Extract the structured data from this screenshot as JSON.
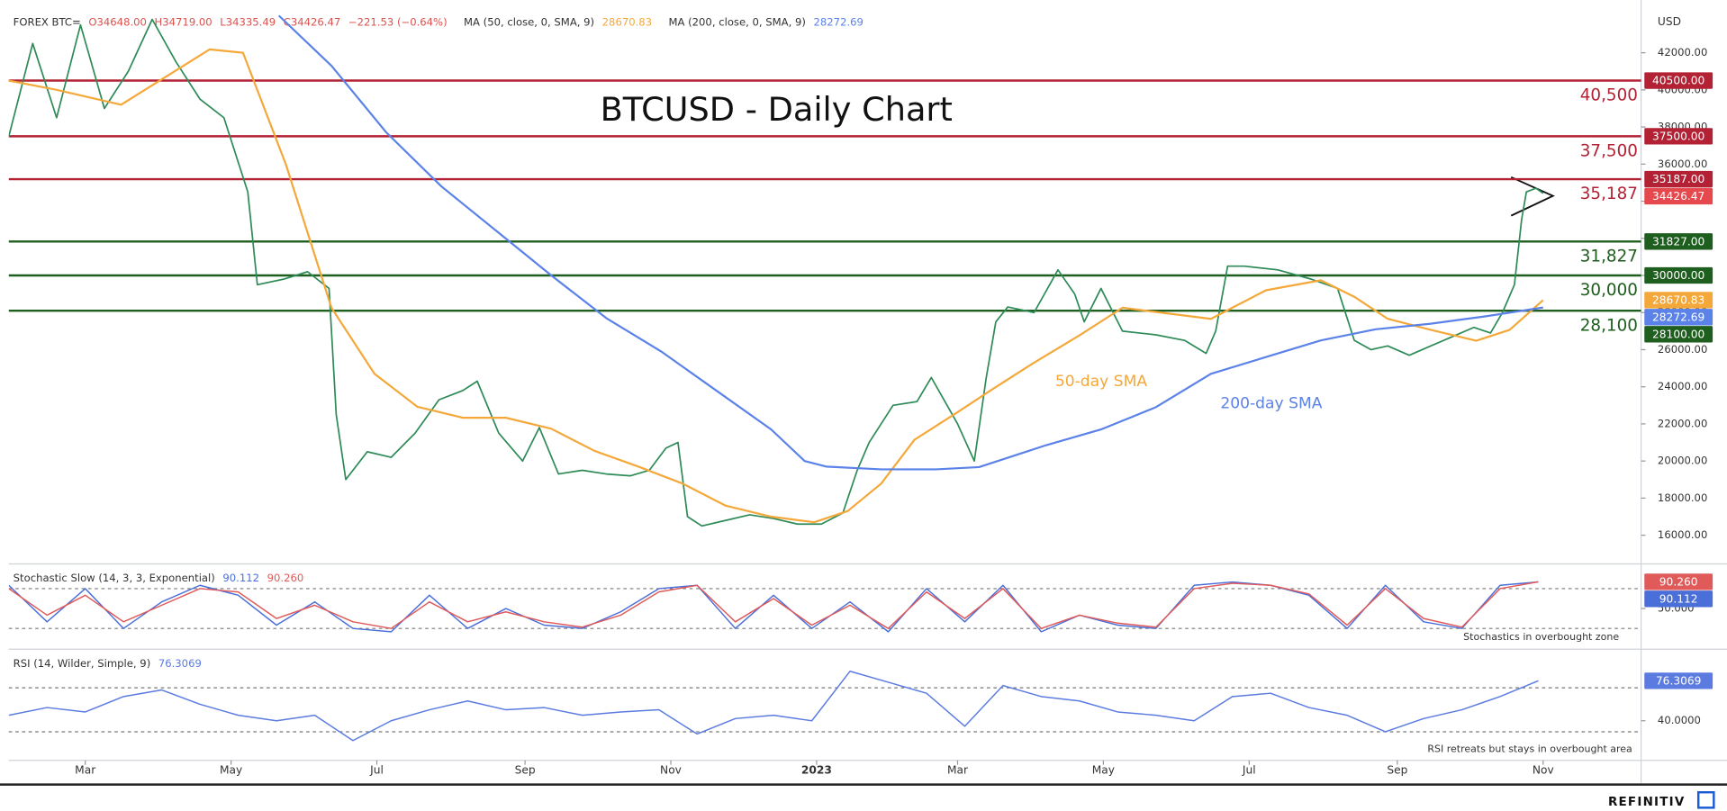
{
  "chart_data": [
    {
      "type": "line",
      "title": "BTCUSD - Daily Chart",
      "y_unit": "USD",
      "info": [
        "O34648.00",
        "H34719.00",
        "L34335.49",
        "C34426.47",
        "−221.53 (−0.64%)"
      ],
      "xlim": [
        0,
        683
      ],
      "ylim": [
        14600,
        44250
      ],
      "xticks": [
        {
          "value": 32,
          "label": "Mar"
        },
        {
          "value": 93,
          "label": "May"
        },
        {
          "value": 154,
          "label": "Jul"
        },
        {
          "value": 216,
          "label": "Sep"
        },
        {
          "value": 277,
          "label": "Nov"
        },
        {
          "value": 338,
          "label": "2023"
        },
        {
          "value": 397,
          "label": "Mar"
        },
        {
          "value": 458,
          "label": "May"
        },
        {
          "value": 519,
          "label": "Jul"
        },
        {
          "value": 581,
          "label": "Sep"
        },
        {
          "value": 642,
          "label": "Nov"
        }
      ],
      "yticks": [
        {
          "value": 16000,
          "label": "16000.00"
        },
        {
          "value": 18000,
          "label": "18000.00"
        },
        {
          "value": 20000,
          "label": "20000.00"
        },
        {
          "value": 22000,
          "label": "22000.00"
        },
        {
          "value": 24000,
          "label": "24000.00"
        },
        {
          "value": 26000,
          "label": "26000.00"
        },
        {
          "value": 28000,
          "label": "28000.00"
        },
        {
          "value": 30000,
          "label": "30000.00"
        },
        {
          "value": 32000,
          "label": "32000.00"
        },
        {
          "value": 34000,
          "label": "34000.00"
        },
        {
          "value": 36000,
          "label": "36000.00"
        },
        {
          "value": 38000,
          "label": "38000.00"
        },
        {
          "value": 40000,
          "label": "40000.00"
        },
        {
          "value": 42000,
          "label": "42000.00"
        }
      ],
      "series": [
        {
          "name": "FOREX BTC=",
          "color": "#2e8b57",
          "badge_color": "#e5494d",
          "x": [
            0,
            10,
            20,
            30,
            40,
            50,
            60,
            70,
            80,
            90,
            100,
            104,
            115,
            125,
            134,
            137,
            141,
            150,
            160,
            170,
            180,
            190,
            196,
            205,
            215,
            222,
            230,
            240,
            250,
            260,
            268,
            275,
            280,
            284,
            290,
            300,
            310,
            320,
            330,
            340,
            349,
            355,
            360,
            370,
            380,
            386,
            397,
            404,
            409,
            413,
            418,
            429,
            439,
            446,
            450,
            457,
            466,
            480,
            492,
            501,
            505,
            510,
            517,
            531,
            545,
            556,
            563,
            570,
            577,
            586,
            595,
            604,
            613,
            620,
            625,
            630,
            633,
            635,
            639,
            642
          ],
          "values": [
            37500,
            42500,
            38500,
            43500,
            39000,
            41000,
            43800,
            41500,
            39500,
            38500,
            34500,
            29500,
            29800,
            30200,
            29300,
            22500,
            19000,
            20500,
            20200,
            21500,
            23300,
            23800,
            24300,
            21500,
            20000,
            21800,
            19300,
            19500,
            19300,
            19200,
            19500,
            20700,
            21000,
            17000,
            16500,
            16800,
            17100,
            16900,
            16600,
            16600,
            17200,
            19500,
            21000,
            23000,
            23200,
            24500,
            22000,
            20000,
            24500,
            27500,
            28300,
            28000,
            30300,
            29000,
            27500,
            29300,
            27000,
            26800,
            26500,
            25800,
            27000,
            30500,
            30500,
            30300,
            29800,
            29300,
            26500,
            26000,
            26200,
            25700,
            26200,
            26700,
            27200,
            26900,
            28000,
            29500,
            33000,
            34500,
            34700,
            34426.47
          ]
        },
        {
          "name": "MA (50, close, 0, SMA, 9)",
          "color": "#f5a83a",
          "note": "50-day SMA",
          "x": [
            0,
            20,
            47,
            84,
            98,
            116,
            135,
            153,
            171,
            190,
            208,
            227,
            245,
            264,
            282,
            300,
            319,
            337,
            351,
            365,
            379,
            397,
            411,
            429,
            448,
            466,
            485,
            503,
            526,
            549,
            563,
            577,
            595,
            614,
            628,
            642
          ],
          "values": [
            40500,
            40000,
            39200,
            42180,
            42000,
            35960,
            28260,
            24700,
            22920,
            22330,
            22330,
            21740,
            20550,
            19670,
            18780,
            17590,
            17000,
            16700,
            17300,
            18780,
            21150,
            22630,
            23820,
            25300,
            26770,
            28260,
            27950,
            27660,
            29200,
            29740,
            28850,
            27660,
            27070,
            26480,
            27070,
            28670.83
          ]
        },
        {
          "name": "MA (200, close, 0, SMA, 9)",
          "color": "#5b82e8",
          "note": "200-day SMA",
          "x": [
            113,
            135,
            158,
            181,
            204,
            227,
            250,
            273,
            296,
            319,
            333,
            342,
            365,
            388,
            406,
            434,
            457,
            480,
            503,
            526,
            549,
            572,
            595,
            618,
            642
          ],
          "values": [
            44000,
            41300,
            37700,
            34800,
            32400,
            30000,
            27700,
            25900,
            23800,
            21700,
            20000,
            19700,
            19550,
            19550,
            19670,
            20850,
            21700,
            22900,
            24700,
            25600,
            26500,
            27100,
            27400,
            27800,
            28272.69
          ]
        }
      ],
      "levels": [
        {
          "value": 40500,
          "label": "40,500",
          "badge": "40500.00",
          "color": "#b22234"
        },
        {
          "value": 37500,
          "label": "37,500",
          "badge": "37500.00",
          "color": "#b22234"
        },
        {
          "value": 35187,
          "label": "35,187",
          "badge": "35187.00",
          "color": "#b22234"
        },
        {
          "value": 31827,
          "label": "31,827",
          "badge": "31827.00",
          "color": "#1e5e1e"
        },
        {
          "value": 30000,
          "label": "30,000",
          "badge": "30000.00",
          "color": "#1e5e1e"
        },
        {
          "value": 28100,
          "label": "28,100",
          "badge": "28100.00",
          "color": "#1e5e1e"
        }
      ]
    },
    {
      "type": "line",
      "title": "Stochastic Slow (14, 3, 3, Exponential)",
      "note": "Stochastics in overbought zone",
      "xlim": [
        0,
        683
      ],
      "ylim": [
        -8,
        113
      ],
      "yticks": [
        {
          "value": 50,
          "label": "50.000"
        }
      ],
      "levels": [
        80,
        20
      ],
      "series": [
        {
          "name": "%K",
          "color": "#4a6fd9",
          "x": [
            0,
            16,
            32,
            48,
            64,
            80,
            96,
            112,
            128,
            144,
            160,
            176,
            192,
            208,
            224,
            240,
            256,
            272,
            288,
            304,
            320,
            336,
            352,
            368,
            384,
            400,
            416,
            432,
            448,
            464,
            480,
            496,
            512,
            528,
            544,
            560,
            576,
            592,
            608,
            624,
            640
          ],
          "values": [
            85,
            30,
            80,
            20,
            60,
            85,
            70,
            25,
            60,
            20,
            15,
            70,
            20,
            50,
            25,
            20,
            45,
            80,
            85,
            20,
            70,
            20,
            60,
            15,
            80,
            30,
            85,
            15,
            40,
            25,
            20,
            85,
            90,
            85,
            70,
            20,
            85,
            30,
            20,
            85,
            90.112
          ]
        },
        {
          "name": "%D",
          "color": "#e05a5a",
          "last_label": "90.260",
          "x": [
            0,
            16,
            32,
            48,
            64,
            80,
            96,
            112,
            128,
            144,
            160,
            176,
            192,
            208,
            224,
            240,
            256,
            272,
            288,
            304,
            320,
            336,
            352,
            368,
            384,
            400,
            416,
            432,
            448,
            464,
            480,
            496,
            512,
            528,
            544,
            560,
            576,
            592,
            608,
            624,
            640
          ],
          "values": [
            80,
            40,
            70,
            30,
            55,
            80,
            75,
            35,
            55,
            30,
            20,
            60,
            30,
            45,
            30,
            22,
            40,
            75,
            85,
            30,
            65,
            25,
            55,
            20,
            75,
            35,
            80,
            20,
            40,
            28,
            22,
            80,
            88,
            85,
            72,
            25,
            80,
            35,
            22,
            80,
            90.26
          ]
        }
      ]
    },
    {
      "type": "line",
      "title": "RSI (14, Wilder, Simple, 9)",
      "note": "RSI retreats but stays in overbought area",
      "xlim": [
        0,
        683
      ],
      "ylim": [
        5,
        103
      ],
      "yticks": [
        {
          "value": 40,
          "label": "40.0000"
        }
      ],
      "levels": [
        70,
        30
      ],
      "series": [
        {
          "name": "RSI",
          "color": "#5b7be0",
          "x": [
            0,
            16,
            32,
            48,
            64,
            80,
            96,
            112,
            128,
            144,
            160,
            176,
            192,
            208,
            224,
            240,
            256,
            272,
            288,
            304,
            320,
            336,
            352,
            368,
            384,
            400,
            416,
            432,
            448,
            464,
            480,
            496,
            512,
            528,
            544,
            560,
            576,
            592,
            608,
            624,
            640
          ],
          "values": [
            45,
            52,
            48,
            62,
            68,
            55,
            45,
            40,
            45,
            22,
            40,
            50,
            58,
            50,
            52,
            45,
            48,
            50,
            28,
            42,
            45,
            40,
            85,
            75,
            65,
            35,
            72,
            62,
            58,
            48,
            45,
            40,
            62,
            65,
            52,
            45,
            30,
            42,
            50,
            62,
            76.3069
          ]
        }
      ]
    }
  ],
  "footer": {
    "brand": "REFINITIV"
  }
}
